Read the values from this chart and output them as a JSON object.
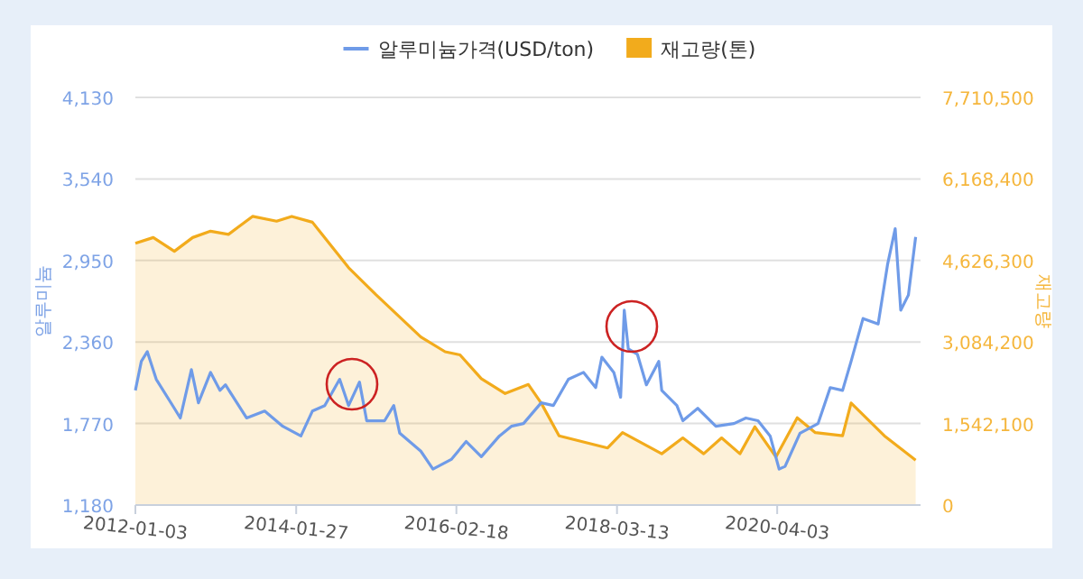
{
  "chart_data": {
    "type": "line",
    "ylabel": "알루미늄",
    "y2label": "재고량",
    "legend": "top",
    "grid": "y",
    "xlim": [
      "2012-01-03",
      "2022-02-05"
    ],
    "xticks": [
      "2012-01-03",
      "2014-01-27",
      "2016-02-18",
      "2018-03-13",
      "2020-04-03"
    ],
    "ylim": [
      1180,
      4130
    ],
    "yticks": [
      {
        "value": 1180,
        "label": "1,180"
      },
      {
        "value": 1770,
        "label": "1,770"
      },
      {
        "value": 2360,
        "label": "2,360"
      },
      {
        "value": 2950,
        "label": "2,950"
      },
      {
        "value": 3540,
        "label": "3,540"
      },
      {
        "value": 4130,
        "label": "4,130"
      }
    ],
    "y2lim": [
      0,
      7710500
    ],
    "y2ticks": [
      0,
      {
        "value": 1542100,
        "label": "1,542,100"
      },
      {
        "value": 3084200,
        "label": "3,084,200"
      },
      {
        "value": 4626300,
        "label": "4,626,300"
      },
      {
        "value": 6168400,
        "label": "6,168,400"
      },
      {
        "value": 7710500,
        "label": "7,710,500"
      }
    ],
    "series": [
      {
        "name": "알루미늄가격(USD/ton)",
        "color": "#6f9be8",
        "x": [
          "2012-01-03",
          "2012-01-31",
          "2012-02-28",
          "2012-04-10",
          "2012-07-04",
          "2012-08-01",
          "2012-09-22",
          "2012-10-25",
          "2012-12-21",
          "2013-02-03",
          "2013-03-01",
          "2013-06-08",
          "2013-09-01",
          "2013-11-25",
          "2014-02-18",
          "2014-04-13",
          "2014-06-10",
          "2014-08-19",
          "2014-09-30",
          "2014-11-20",
          "2014-12-24",
          "2015-03-18",
          "2015-04-30",
          "2015-05-28",
          "2015-09-04",
          "2015-10-31",
          "2016-01-25",
          "2016-04-04",
          "2016-06-14",
          "2016-09-07",
          "2016-11-02",
          "2016-12-29",
          "2017-03-22",
          "2017-05-18",
          "2017-07-28",
          "2017-10-07",
          "2017-12-03",
          "2018-01-01",
          "2018-02-26",
          "2018-03-30",
          "2018-04-16",
          "2018-05-05",
          "2018-06-17",
          "2018-07-29",
          "2018-09-25",
          "2018-10-09",
          "2018-12-19",
          "2019-01-16",
          "2019-03-27",
          "2019-06-20",
          "2019-09-13",
          "2019-11-08",
          "2020-01-04",
          "2020-03-01",
          "2020-04-12",
          "2020-05-10",
          "2020-07-19",
          "2020-10-12",
          "2020-12-08",
          "2021-02-04",
          "2021-03-16",
          "2021-05-11",
          "2021-07-21",
          "2021-09-03",
          "2021-10-09",
          "2021-11-04",
          "2021-12-10",
          "2022-01-13"
        ],
        "values": [
          2010,
          2220,
          2290,
          2090,
          1880,
          1810,
          2160,
          1920,
          2140,
          2010,
          2050,
          1810,
          1860,
          1750,
          1680,
          1860,
          1900,
          2090,
          1900,
          2070,
          1790,
          1790,
          1900,
          1700,
          1570,
          1440,
          1510,
          1640,
          1530,
          1680,
          1750,
          1770,
          1920,
          1900,
          2090,
          2140,
          2030,
          2250,
          2140,
          1960,
          2590,
          2310,
          2270,
          2050,
          2220,
          2010,
          1900,
          1790,
          1880,
          1750,
          1770,
          1810,
          1790,
          1680,
          1440,
          1460,
          1700,
          1770,
          2030,
          2010,
          2220,
          2530,
          2490,
          2920,
          3180,
          2590,
          2700,
          3120
        ]
      },
      {
        "name": "재고량(톤)",
        "type": "area",
        "axis": "y2",
        "color": "#f2ab1c",
        "x": [
          "2012-01-03",
          "2012-03-27",
          "2012-07-04",
          "2012-09-28",
          "2012-12-21",
          "2013-03-15",
          "2013-07-06",
          "2013-10-27",
          "2014-01-06",
          "2014-04-13",
          "2014-09-30",
          "2015-02-05",
          "2015-09-04",
          "2015-12-27",
          "2016-03-06",
          "2016-06-14",
          "2016-10-04",
          "2017-01-21",
          "2017-03-22",
          "2017-06-14",
          "2018-01-28",
          "2018-04-08",
          "2018-10-09",
          "2019-01-16",
          "2019-04-24",
          "2019-07-17",
          "2019-10-11",
          "2019-12-20",
          "2020-03-28",
          "2020-07-06",
          "2020-09-29",
          "2021-02-04",
          "2021-03-16",
          "2021-08-19",
          "2022-01-13"
        ],
        "values": [
          4950000,
          5060000,
          4800000,
          5060000,
          5180000,
          5120000,
          5460000,
          5370000,
          5460000,
          5350000,
          4490000,
          3980000,
          3180000,
          2900000,
          2840000,
          2390000,
          2110000,
          2280000,
          1930000,
          1310000,
          1080000,
          1370000,
          970000,
          1270000,
          970000,
          1270000,
          970000,
          1480000,
          910000,
          1650000,
          1370000,
          1310000,
          1930000,
          1310000,
          850000
        ]
      }
    ]
  }
}
